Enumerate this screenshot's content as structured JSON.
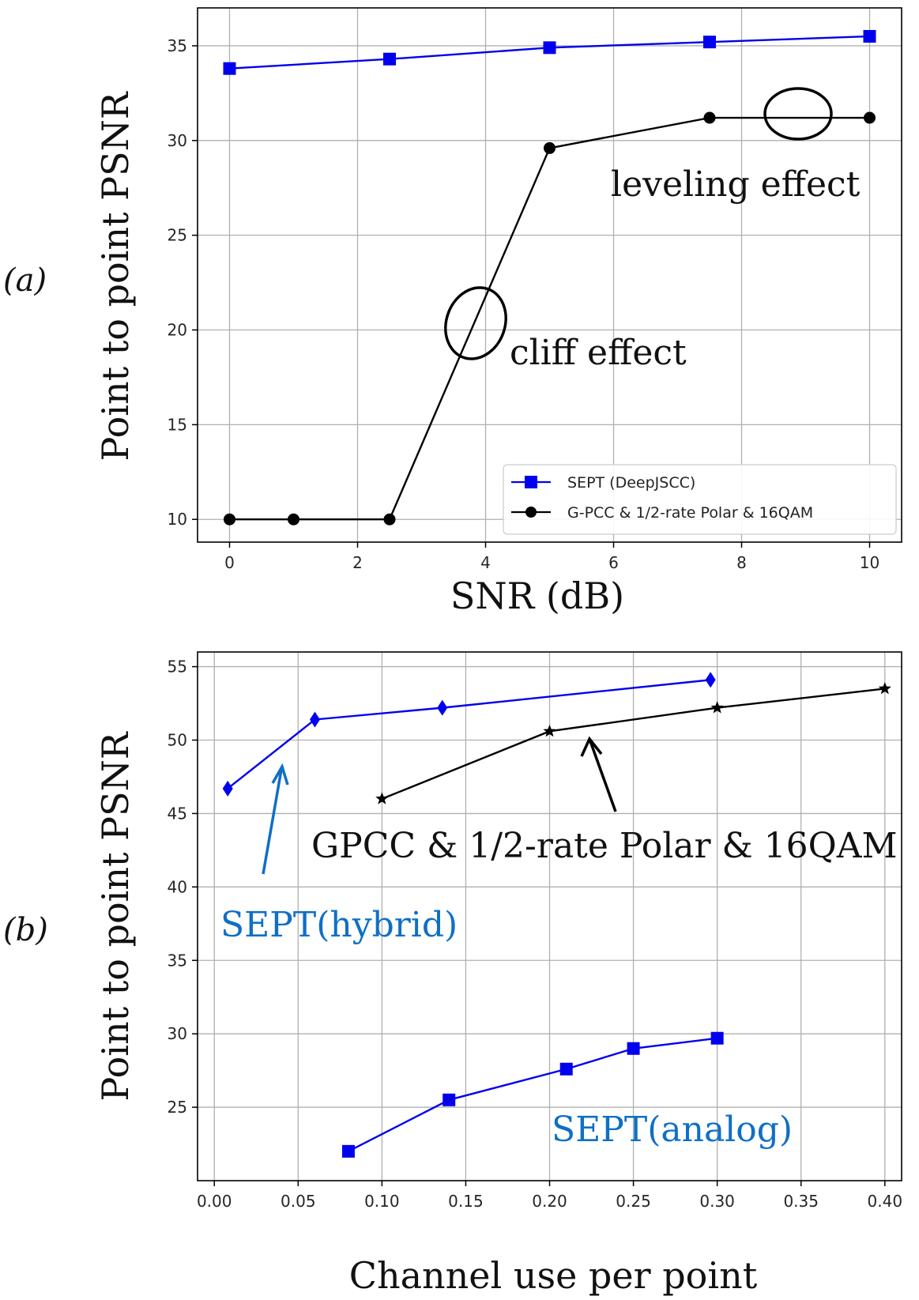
{
  "chart_data": [
    {
      "panel_label": "(a)",
      "type": "line",
      "xlabel": "SNR (dB)",
      "ylabel": "Point to point PSNR",
      "xlim": [
        -0.5,
        10.5
      ],
      "ylim": [
        8.8,
        37.0
      ],
      "xticks": [
        0,
        2,
        4,
        6,
        8,
        10
      ],
      "yticks": [
        10,
        15,
        20,
        25,
        30,
        35
      ],
      "grid": true,
      "legend_position": "lower-right",
      "series": [
        {
          "name": "SEPT (DeepJSCC)",
          "color": "#0000ee",
          "marker": "square",
          "x": [
            0,
            2.5,
            5,
            7.5,
            10
          ],
          "y": [
            33.8,
            34.3,
            34.9,
            35.2,
            35.5
          ]
        },
        {
          "name": "G-PCC & 1/2-rate Polar & 16QAM",
          "color": "#000000",
          "marker": "circle",
          "x": [
            0,
            1,
            2.5,
            5,
            7.5,
            10
          ],
          "y": [
            10.0,
            10.0,
            10.0,
            29.6,
            31.2,
            31.2
          ]
        }
      ],
      "annotations": [
        {
          "text": "leveling effect",
          "color": "#111111"
        },
        {
          "text": "cliff effect",
          "color": "#111111"
        }
      ]
    },
    {
      "panel_label": "(b)",
      "type": "line",
      "xlabel": "Channel use per point",
      "ylabel": "Point to point PSNR",
      "xlim": [
        -0.01,
        0.41
      ],
      "ylim": [
        20.0,
        56.0
      ],
      "xticks": [
        "0.00",
        "0.05",
        "0.10",
        "0.15",
        "0.20",
        "0.25",
        "0.30",
        "0.35",
        "0.40"
      ],
      "yticks": [
        25,
        30,
        35,
        40,
        45,
        50,
        55
      ],
      "grid": true,
      "series": [
        {
          "name": "SEPT(hybrid)",
          "color": "#0000ee",
          "marker": "diamond",
          "x": [
            0.008,
            0.06,
            0.136,
            0.296
          ],
          "y": [
            46.7,
            51.4,
            52.2,
            54.1
          ]
        },
        {
          "name": "GPCC & 1/2-rate Polar & 16QAM",
          "color": "#000000",
          "marker": "star",
          "x": [
            0.1,
            0.2,
            0.3,
            0.4
          ],
          "y": [
            46.0,
            50.6,
            52.2,
            53.5
          ]
        },
        {
          "name": "SEPT(analog)",
          "color": "#0000ee",
          "marker": "square",
          "x": [
            0.08,
            0.14,
            0.21,
            0.25,
            0.3
          ],
          "y": [
            22.0,
            25.5,
            27.6,
            29.0,
            29.7
          ]
        }
      ],
      "annotations": [
        {
          "text": "GPCC & 1/2-rate Polar & 16QAM",
          "color": "#111111"
        },
        {
          "text": "SEPT(hybrid)",
          "color": "#0f6fc6"
        },
        {
          "text": "SEPT(analog)",
          "color": "#0f6fc6"
        }
      ]
    }
  ]
}
